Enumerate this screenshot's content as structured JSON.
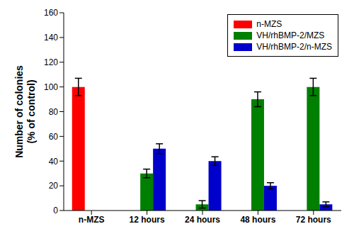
{
  "chart_data": {
    "type": "bar",
    "categories": [
      "n-MZS",
      "12 hours",
      "24 hours",
      "48 hours",
      "72 hours"
    ],
    "y_label": [
      "Number of colonies",
      "(% of control)"
    ],
    "ylim": [
      0,
      160
    ],
    "yticks": [
      0,
      20,
      40,
      60,
      80,
      100,
      120,
      140,
      160
    ],
    "legend": "upper right",
    "series": [
      {
        "name": "n-MZS",
        "color": "#ff0000",
        "values": [
          100,
          null,
          null,
          null,
          null
        ],
        "errors": [
          7,
          null,
          null,
          null,
          null
        ]
      },
      {
        "name": "VH/rhBMP-2/MZS",
        "color": "#008000",
        "values": [
          null,
          30,
          5,
          90,
          100
        ],
        "errors": [
          null,
          3.5,
          3,
          6,
          7
        ]
      },
      {
        "name": "VH/rhBMP-2/n-MZS",
        "color": "#0000cc",
        "values": [
          null,
          50,
          40,
          20,
          5
        ],
        "errors": [
          null,
          4,
          3.5,
          2.5,
          2
        ]
      }
    ]
  }
}
